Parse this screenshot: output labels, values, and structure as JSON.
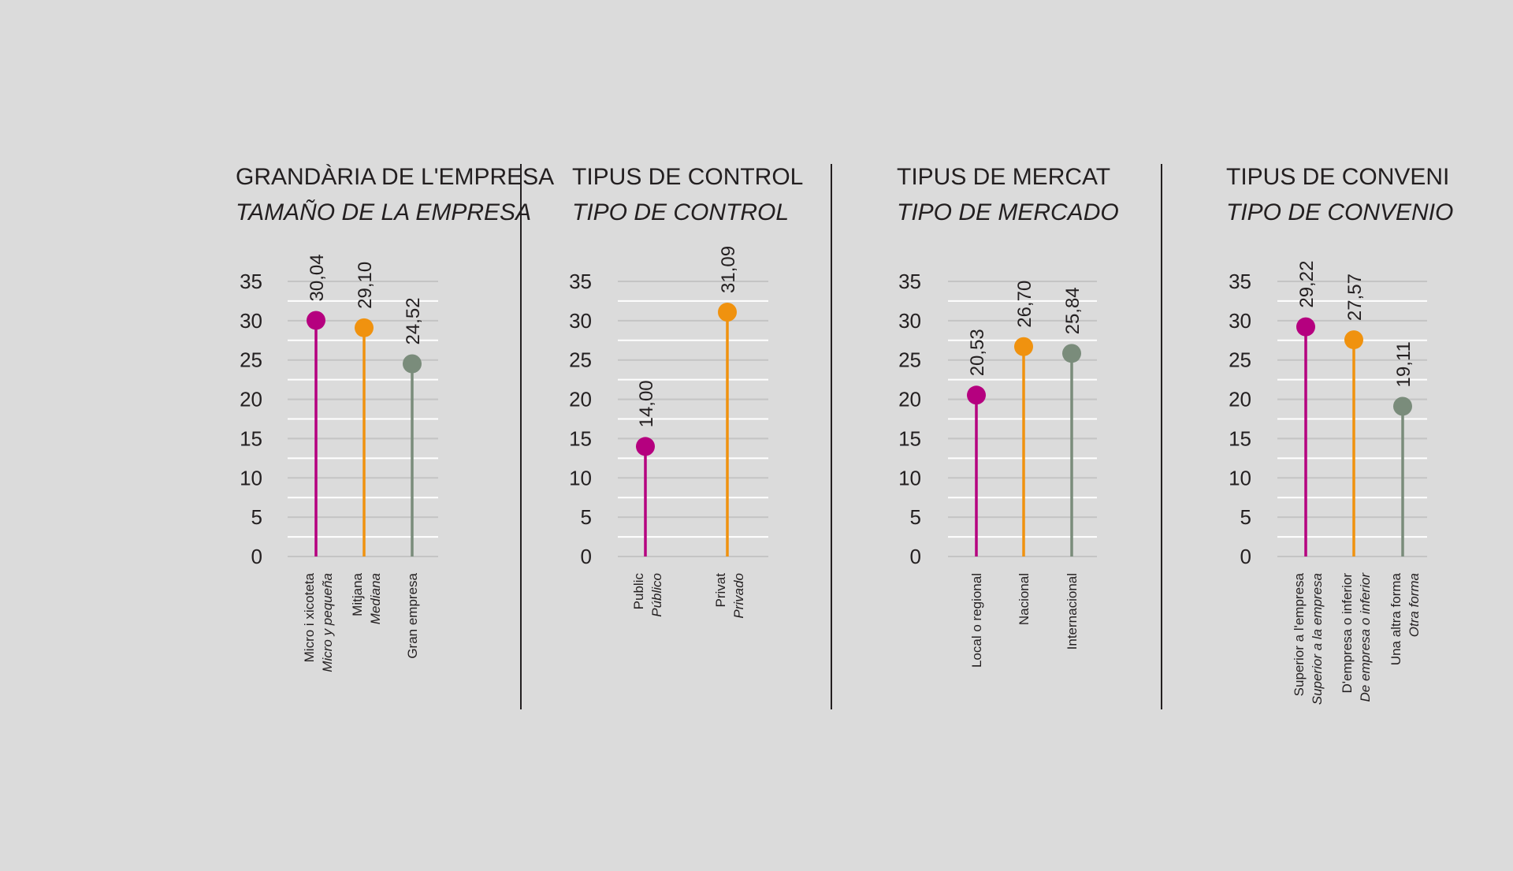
{
  "colors": {
    "background": "#dbdbdb",
    "grid": "#ffffff",
    "grid_dark": "#c4c4c4",
    "divider": "#231f20",
    "magenta": "#b5007f",
    "orange": "#f0920f",
    "green": "#7a8c7b"
  },
  "chart_data": [
    {
      "type": "lollipop",
      "title": "GRANDÀRIA DE L'EMPRESA",
      "subtitle": "TAMAÑO DE LA EMPRESA",
      "ylim": [
        0,
        35
      ],
      "yticks": [
        "0",
        "5",
        "10",
        "15",
        "20",
        "25",
        "30",
        "35"
      ],
      "categories": [
        {
          "label_ca": "Micro i xicoteta",
          "label_es": "Micro y pequeña",
          "value": 30.04,
          "value_label": "30,04",
          "color": "#b5007f"
        },
        {
          "label_ca": "Mitjana",
          "label_es": "Mediana",
          "value": 29.1,
          "value_label": "29,10",
          "color": "#f0920f"
        },
        {
          "label_ca": "Gran empresa",
          "label_es": "",
          "value": 24.52,
          "value_label": "24,52",
          "color": "#7a8c7b"
        }
      ]
    },
    {
      "type": "lollipop",
      "title": "TIPUS DE CONTROL",
      "subtitle": "TIPO DE CONTROL",
      "ylim": [
        0,
        35
      ],
      "yticks": [
        "0",
        "5",
        "10",
        "15",
        "20",
        "25",
        "30",
        "35"
      ],
      "categories": [
        {
          "label_ca": "Public",
          "label_es": "Público",
          "value": 14.0,
          "value_label": "14,00",
          "color": "#b5007f"
        },
        {
          "label_ca": "Privat",
          "label_es": "Privado",
          "value": 31.09,
          "value_label": "31,09",
          "color": "#f0920f"
        }
      ]
    },
    {
      "type": "lollipop",
      "title": "TIPUS DE MERCAT",
      "subtitle": "TIPO DE MERCADO",
      "ylim": [
        0,
        35
      ],
      "yticks": [
        "0",
        "5",
        "10",
        "15",
        "20",
        "25",
        "30",
        "35"
      ],
      "categories": [
        {
          "label_ca": "Local o regional",
          "label_es": "",
          "value": 20.53,
          "value_label": "20,53",
          "color": "#b5007f"
        },
        {
          "label_ca": "Nacional",
          "label_es": "",
          "value": 26.7,
          "value_label": "26,70",
          "color": "#f0920f"
        },
        {
          "label_ca": "Internacional",
          "label_es": "",
          "value": 25.84,
          "value_label": "25,84",
          "color": "#7a8c7b"
        }
      ]
    },
    {
      "type": "lollipop",
      "title": "TIPUS DE CONVENI",
      "subtitle": "TIPO DE CONVENIO",
      "ylim": [
        0,
        35
      ],
      "yticks": [
        "0",
        "5",
        "10",
        "15",
        "20",
        "25",
        "30",
        "35"
      ],
      "categories": [
        {
          "label_ca": "Superior a l'empresa",
          "label_es": "Superior a la empresa",
          "value": 29.22,
          "value_label": "29,22",
          "color": "#b5007f"
        },
        {
          "label_ca": "D'empresa o inferior",
          "label_es": "De empresa o inferior",
          "value": 27.57,
          "value_label": "27,57",
          "color": "#f0920f"
        },
        {
          "label_ca": "Una altra forma",
          "label_es": "Otra forma",
          "value": 19.11,
          "value_label": "19,11",
          "color": "#7a8c7b"
        }
      ]
    }
  ]
}
